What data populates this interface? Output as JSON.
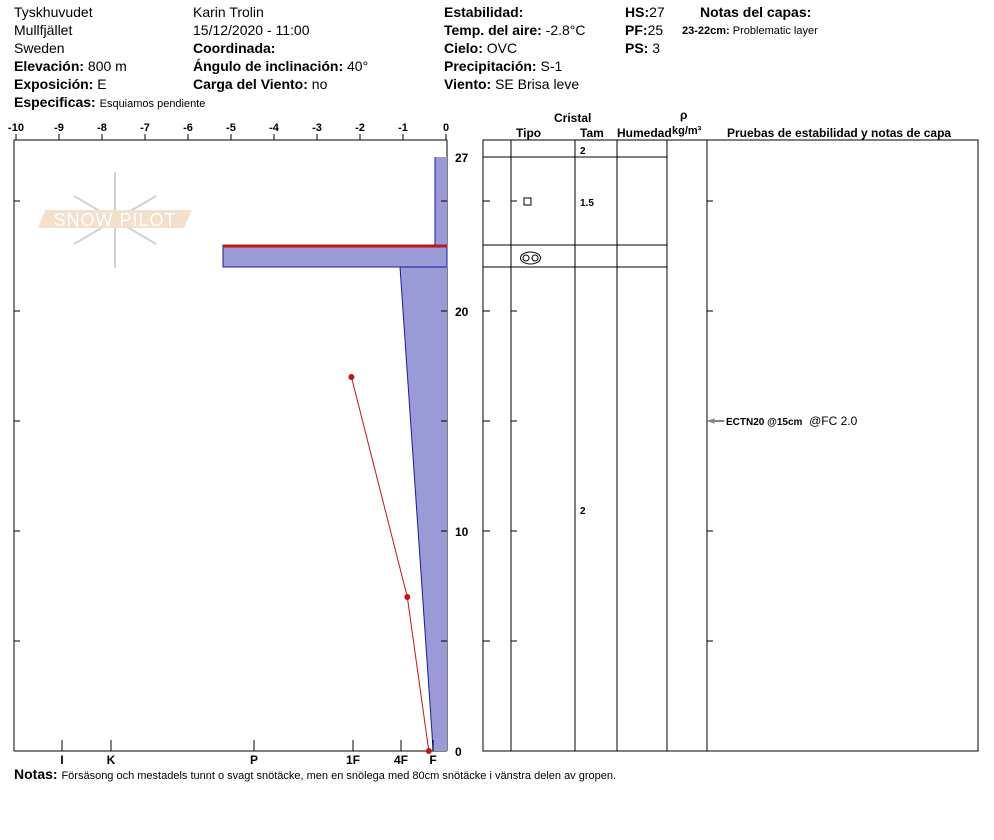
{
  "header": {
    "location": "Tyskhuvudet",
    "range": "Mullfjället",
    "country": "Sweden",
    "elevation_label": "Elevación:",
    "elevation": "800 m",
    "aspect_label": "Exposición:",
    "aspect": "E",
    "specifics_label": "Especificas:",
    "specifics": "Esquiamos pendiente",
    "observer": "Karin  Trolin",
    "datetime": "15/12/2020 - 11:00",
    "coord_label": "Coordinada:",
    "slope_label": "Ángulo de inclinación:",
    "slope": "40°",
    "windload_label": "Carga del Viento:",
    "windload": "no",
    "stability_label": "Estabilidad:",
    "airtemp_label": "Temp. del aire:",
    "airtemp": "-2.8°C",
    "sky_label": "Cielo:",
    "sky": "OVC",
    "precip_label": "Precipitación:",
    "precip": "S-1",
    "wind_label": "Viento:",
    "wind": " SE  Brisa leve",
    "hs_label": "HS:",
    "hs": "27",
    "pf_label": "PF:",
    "pf": "25",
    "ps_label": "PS:",
    "ps": "3",
    "layer_notes_label": "Notas del capas:",
    "layer_note_range": "23-22cm:",
    "layer_note": "Problematic layer"
  },
  "logo_text": "SNOW PILOT",
  "temp_axis": {
    "ticks": [
      "-10",
      "-9",
      "-8",
      "-7",
      "-6",
      "-5",
      "-4",
      "-3",
      "-2",
      "-1",
      "0"
    ]
  },
  "depth_axis": {
    "ticks": [
      "27",
      "20",
      "10",
      "0"
    ]
  },
  "hardness_axis": {
    "ticks": [
      "I",
      "K",
      "P",
      "1F",
      "4F",
      "F"
    ]
  },
  "temperature_profile": [
    {
      "depth": 17,
      "temp": -2.2
    },
    {
      "depth": 7,
      "temp": -0.9
    },
    {
      "depth": 0,
      "temp": -0.4
    }
  ],
  "table": {
    "crystal_label": "Cristal",
    "type_label": "Tipo",
    "size_label": "Tam",
    "moisture_label": "Humedad",
    "density_symbol": "ρ",
    "density_unit": "kg/m³",
    "tests_label": "Pruebas de estabilidad y notas de capa",
    "sizes": [
      "2",
      "1.5",
      "2"
    ],
    "test": "ECTN20 @15cm",
    "test_extra": "@FC 2.0"
  },
  "notes_label": "Notas:",
  "notes": "Försäsong och mestadels tunnt o svagt snötäcke, men en snölega med 80cm snötäcke i vänstra delen av gropen.",
  "colors": {
    "hardness_fill": "#9a9ad6",
    "hardness_edge": "#1a1aa0",
    "temp_line": "#c01818",
    "problem_layer": "#c01818"
  }
}
